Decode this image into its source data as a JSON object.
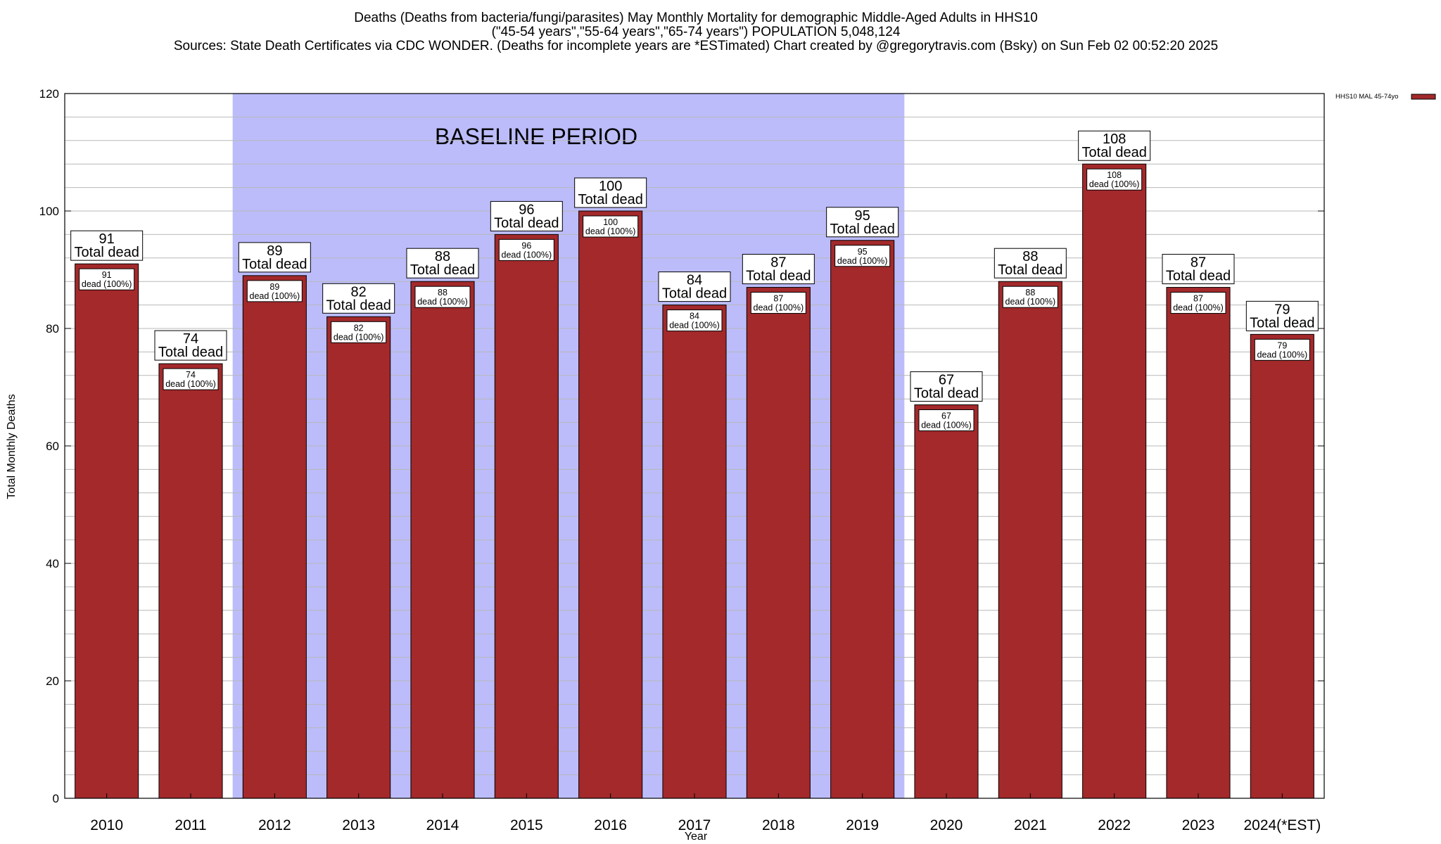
{
  "title_lines": [
    "Deaths (Deaths from bacteria/fungi/parasites) May Monthly Mortality for demographic Middle-Aged Adults in HHS10",
    "(\"45-54 years\",\"55-64 years\",\"65-74 years\") POPULATION 5,048,124",
    "Sources: State Death Certificates via CDC WONDER. (Deaths for incomplete years are *ESTimated)                 Chart created by @gregorytravis.com (Bsky) on Sun Feb 02 00:52:20 2025"
  ],
  "legend": {
    "label": "HHS10 MAL 45-74yo",
    "position": "top-right"
  },
  "baseline": {
    "label": "BASELINE PERIOD",
    "start": "2012",
    "end": "2019",
    "color": "#bcbcfb"
  },
  "colors": {
    "bar": "#a3292b",
    "bar_outline": "#000000",
    "grid": "#b8b8b8"
  },
  "chart_data": {
    "type": "bar",
    "title": "Deaths (Deaths from bacteria/fungi/parasites) May Monthly Mortality for demographic Middle-Aged Adults in HHS10",
    "xlabel": "Year",
    "ylabel": "Total Monthly Deaths",
    "ylim": [
      0,
      120
    ],
    "yticks": [
      0,
      20,
      40,
      60,
      80,
      100,
      120
    ],
    "minor_step": 4,
    "grid": true,
    "legend_position": "top-right",
    "categories": [
      "2010",
      "2011",
      "2012",
      "2013",
      "2014",
      "2015",
      "2016",
      "2017",
      "2018",
      "2019",
      "2020",
      "2021",
      "2022",
      "2023",
      "2024(*EST)"
    ],
    "series": [
      {
        "name": "HHS10 MAL 45-74yo",
        "values": [
          91,
          74,
          89,
          82,
          88,
          96,
          100,
          84,
          87,
          95,
          67,
          88,
          108,
          87,
          79
        ]
      }
    ],
    "bar_label_top": "Total dead",
    "bar_label_inner": "dead (100%)"
  }
}
